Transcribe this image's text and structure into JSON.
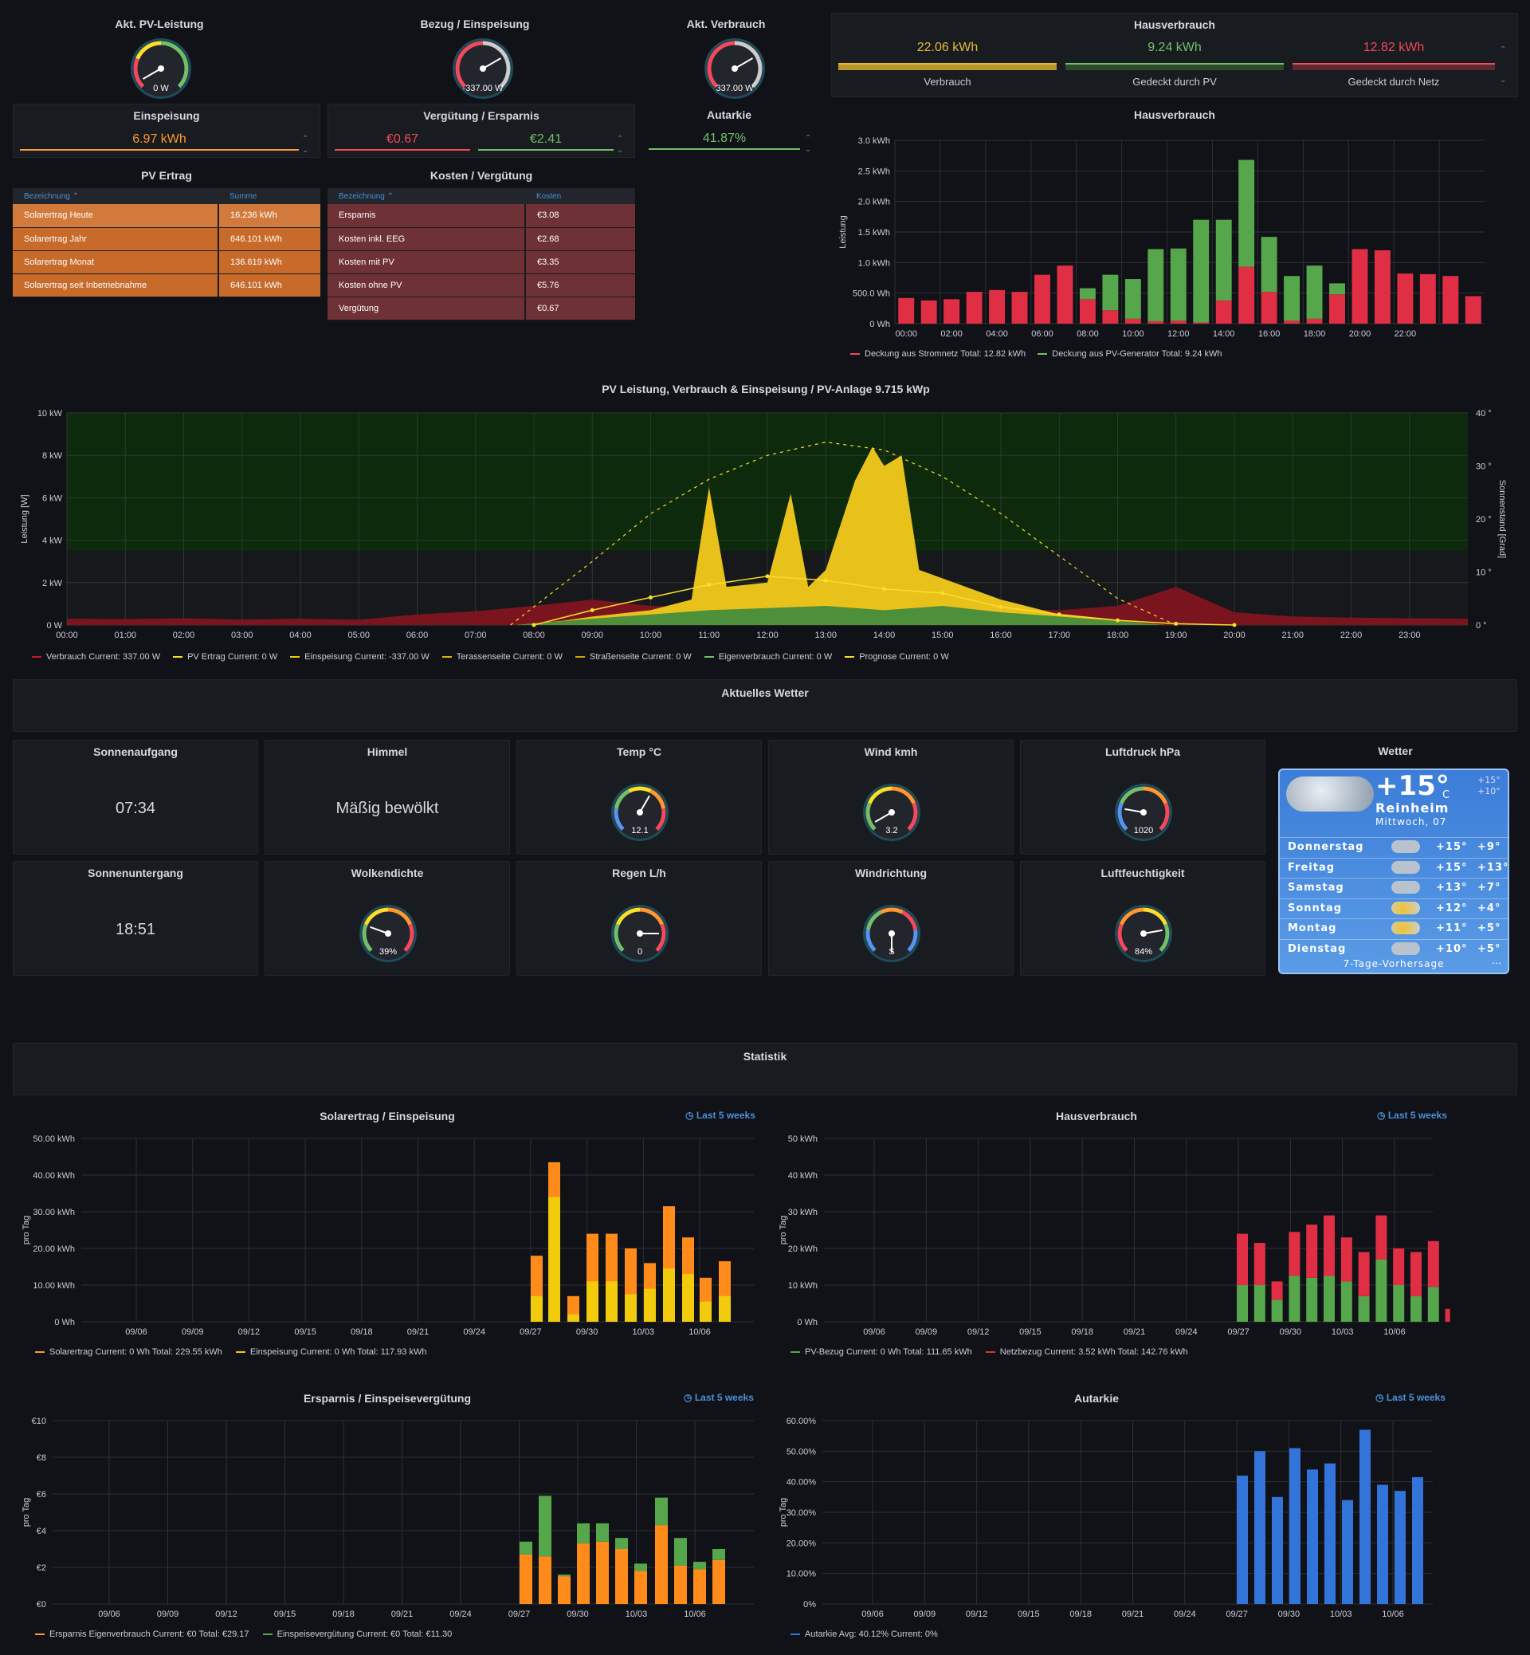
{
  "top_gauges": [
    {
      "title": "Akt. PV-Leistung",
      "value": "0 W"
    },
    {
      "title": "Bezug / Einspeisung",
      "value": "-337.00 W"
    },
    {
      "title": "Akt. Verbrauch",
      "value": "337.00 W"
    }
  ],
  "hausverbrauch_stat": {
    "title": "Hausverbrauch",
    "items": [
      {
        "value": "22.06 kWh",
        "label": "Verbrauch",
        "color": "#e6b83a"
      },
      {
        "value": "9.24 kWh",
        "label": "Gedeckt durch PV",
        "color": "#73bf69"
      },
      {
        "value": "12.82 kWh",
        "label": "Gedeckt durch Netz",
        "color": "#f2495c"
      }
    ]
  },
  "einspeisung": {
    "title": "Einspeisung",
    "value": "6.97 kWh",
    "color": "#ff9830"
  },
  "verguetung": {
    "title": "Vergütung / Ersparnis",
    "v1": "€0.67",
    "v2": "€2.41"
  },
  "autarkie_stat": {
    "title": "Autarkie",
    "value": "41.87%"
  },
  "pv_ertrag": {
    "title": "PV Ertrag",
    "col1": "Bezeichnung",
    "col2": "Summe",
    "rows": [
      [
        "Solarertrag Heute",
        "16.236 kWh"
      ],
      [
        "Solarertrag Jahr",
        "646.101 kWh"
      ],
      [
        "Solarertrag Monat",
        "136.619 kWh"
      ],
      [
        "Solarertrag seit Inbetriebnahme",
        "646.101 kWh"
      ]
    ]
  },
  "kosten": {
    "title": "Kosten / Vergütung",
    "col1": "Bezeichnung",
    "col2": "Kosten",
    "rows": [
      [
        "Ersparnis",
        "€3.08"
      ],
      [
        "Kosten inkl. EEG",
        "€2.68"
      ],
      [
        "Kosten mit PV",
        "€3.35"
      ],
      [
        "Kosten ohne PV",
        "€5.76"
      ],
      [
        "Vergütung",
        "€0.67"
      ]
    ]
  },
  "haus_chart": {
    "title": "Hausverbrauch",
    "ylabel": "Leistung",
    "legend": [
      {
        "text": "Deckung aus Stromnetz  Total: 12.82 kWh",
        "color": "#f2495c"
      },
      {
        "text": "Deckung aus PV-Generator  Total: 9.24 kWh",
        "color": "#73bf69"
      }
    ]
  },
  "pv_chart": {
    "title": "PV Leistung, Verbrauch & Einspeisung / PV-Anlage 9.715 kWp",
    "ylabel": "Leistung [W]",
    "y2label": "Sonnenstand [Grad]",
    "legend": [
      {
        "text": "Verbrauch  Current: 337.00 W",
        "color": "#c4162a"
      },
      {
        "text": "PV Ertrag  Current: 0 W",
        "color": "#fade2a"
      },
      {
        "text": "Einspeisung  Current: -337.00 W",
        "color": "#f2cc0c"
      },
      {
        "text": "Terassenseite  Current: 0 W",
        "color": "#e0b400"
      },
      {
        "text": "Straßenseite  Current: 0 W",
        "color": "#cca300"
      },
      {
        "text": "Eigenverbrauch  Current: 0 W",
        "color": "#73bf69"
      },
      {
        "text": "Prognose  Current: 0 W",
        "color": "#fade2a"
      }
    ]
  },
  "wetter_header": "Aktuelles Wetter",
  "weather": {
    "sunrise": {
      "title": "Sonnenaufgang",
      "value": "07:34"
    },
    "sky": {
      "title": "Himmel",
      "value": "Mäßig bewölkt"
    },
    "temp": {
      "title": "Temp °C",
      "value": "12.1"
    },
    "wind": {
      "title": "Wind kmh",
      "value": "3.2"
    },
    "pressure": {
      "title": "Luftdruck hPa",
      "value": "1020"
    },
    "sunset": {
      "title": "Sonnenuntergang",
      "value": "18:51"
    },
    "clouds": {
      "title": "Wolkendichte",
      "value": "39%"
    },
    "rain": {
      "title": "Regen L/h",
      "value": "0"
    },
    "winddir": {
      "title": "Windrichtung",
      "value": "S"
    },
    "humidity": {
      "title": "Luftfeuchtigkeit",
      "value": "84%"
    }
  },
  "wetter_widget": {
    "title": "Wetter",
    "temp": "+15°",
    "unit": "C",
    "hi": "+15°",
    "lo": "+10°",
    "city": "Reinheim",
    "date": "Mittwoch, 07",
    "days": [
      [
        "Donnerstag",
        "+15°",
        "+9°"
      ],
      [
        "Freitag",
        "+15°",
        "+13°"
      ],
      [
        "Samstag",
        "+13°",
        "+7°"
      ],
      [
        "Sonntag",
        "+12°",
        "+4°"
      ],
      [
        "Montag",
        "+11°",
        "+5°"
      ],
      [
        "Dienstag",
        "+10°",
        "+5°"
      ]
    ],
    "footer": "7-Tage-Vorhersage"
  },
  "statistik_header": "Statistik",
  "stats": {
    "range_label": "Last 5 weeks",
    "dates": [
      "09/06",
      "09/09",
      "09/12",
      "09/15",
      "09/18",
      "09/21",
      "09/24",
      "09/27",
      "09/30",
      "10/03",
      "10/06"
    ],
    "ylabel": "pro Tag",
    "solar": {
      "title": "Solarertrag / Einspeisung",
      "yticks": [
        "0 Wh",
        "10.00 kWh",
        "20.00 kWh",
        "30.00 kWh",
        "40.00 kWh",
        "50.00 kWh"
      ],
      "legend": [
        {
          "text": "Solarertrag  Current: 0 Wh  Total: 229.55 kWh",
          "color": "#ff9830"
        },
        {
          "text": "Einspeisung  Current: 0 Wh  Total: 117.93 kWh",
          "color": "#f2cc0c"
        }
      ]
    },
    "haus": {
      "title": "Hausverbrauch",
      "yticks": [
        "0 Wh",
        "10 kWh",
        "20 kWh",
        "30 kWh",
        "40 kWh",
        "50 kWh"
      ],
      "legend": [
        {
          "text": "PV-Bezug  Current: 0 Wh  Total: 111.65 kWh",
          "color": "#56a64b"
        },
        {
          "text": "Netzbezug  Current: 3.52 kWh  Total: 142.76 kWh",
          "color": "#e02f44"
        }
      ]
    },
    "ersparnis": {
      "title": "Ersparnis / Einspeisevergütung",
      "yticks": [
        "€0",
        "€2",
        "€4",
        "€6",
        "€8",
        "€10"
      ],
      "legend": [
        {
          "text": "Ersparnis Eigenverbrauch  Current: €0  Total: €29.17",
          "color": "#ff9830"
        },
        {
          "text": "Einspeisevergütung  Current: €0  Total: €11.30",
          "color": "#56a64b"
        }
      ]
    },
    "autarkie": {
      "title": "Autarkie",
      "yticks": [
        "0%",
        "10.00%",
        "20.00%",
        "30.00%",
        "40.00%",
        "50.00%",
        "60.00%"
      ],
      "legend": [
        {
          "text": "Autarkie  Avg: 40.12%  Current: 0%",
          "color": "#3274d9"
        }
      ]
    }
  },
  "chart_data": [
    {
      "type": "bar",
      "title": "Hausverbrauch",
      "ylabel": "Leistung",
      "ylim": [
        0,
        3000
      ],
      "yticks": [
        "0 Wh",
        "500.0 Wh",
        "1.0 kWh",
        "1.5 kWh",
        "2.0 kWh",
        "2.5 kWh",
        "3.0 kWh"
      ],
      "xticks": [
        "00:00",
        "02:00",
        "04:00",
        "06:00",
        "08:00",
        "10:00",
        "12:00",
        "14:00",
        "16:00",
        "18:00",
        "20:00",
        "22:00"
      ],
      "series": [
        {
          "name": "Deckung aus Stromnetz",
          "values": [
            420,
            380,
            400,
            520,
            550,
            520,
            800,
            950,
            400,
            220,
            80,
            40,
            50,
            20,
            380,
            930,
            520,
            50,
            80,
            480,
            1220,
            1200,
            820,
            810,
            780,
            450
          ]
        },
        {
          "name": "Deckung aus PV-Generator",
          "values": [
            0,
            0,
            0,
            0,
            0,
            0,
            0,
            0,
            180,
            580,
            650,
            1180,
            1180,
            1680,
            1320,
            1750,
            900,
            730,
            870,
            180,
            0,
            0,
            0,
            0,
            0,
            0
          ]
        }
      ]
    },
    {
      "type": "area",
      "title": "PV Leistung, Verbrauch & Einspeisung / PV-Anlage 9.715 kWp",
      "ylim": [
        0,
        10000
      ],
      "y2lim": [
        0,
        40
      ],
      "yticks": [
        "0 W",
        "2 kW",
        "4 kW",
        "6 kW",
        "8 kW",
        "10 kW"
      ],
      "y2ticks": [
        "0 °",
        "10 °",
        "20 °",
        "30 °",
        "40 °"
      ],
      "xticks": [
        "00:00",
        "01:00",
        "02:00",
        "03:00",
        "04:00",
        "05:00",
        "06:00",
        "07:00",
        "08:00",
        "09:00",
        "10:00",
        "11:00",
        "12:00",
        "13:00",
        "14:00",
        "15:00",
        "16:00",
        "17:00",
        "18:00",
        "19:00",
        "20:00",
        "21:00",
        "22:00",
        "23:00"
      ],
      "series": [
        {
          "name": "Verbrauch",
          "points": [
            [
              0,
              300
            ],
            [
              1,
              280
            ],
            [
              2,
              320
            ],
            [
              3,
              260
            ],
            [
              4,
              300
            ],
            [
              5,
              250
            ],
            [
              6,
              500
            ],
            [
              7,
              650
            ],
            [
              8,
              900
            ],
            [
              9,
              1200
            ],
            [
              10,
              900
            ],
            [
              11,
              800
            ],
            [
              12,
              700
            ],
            [
              13,
              600
            ],
            [
              14,
              700
            ],
            [
              15,
              800
            ],
            [
              16,
              750
            ],
            [
              17,
              700
            ],
            [
              18,
              900
            ],
            [
              19,
              1800
            ],
            [
              20,
              600
            ],
            [
              21,
              400
            ],
            [
              22,
              350
            ],
            [
              23,
              320
            ],
            [
              24,
              300
            ]
          ]
        },
        {
          "name": "PV Ertrag",
          "points": [
            [
              7.7,
              0
            ],
            [
              8.5,
              200
            ],
            [
              9,
              400
            ],
            [
              10,
              700
            ],
            [
              10.7,
              1200
            ],
            [
              11,
              6500
            ],
            [
              11.3,
              1800
            ],
            [
              12,
              2000
            ],
            [
              12.4,
              6200
            ],
            [
              12.7,
              1800
            ],
            [
              13,
              2600
            ],
            [
              13.5,
              6800
            ],
            [
              13.8,
              8400
            ],
            [
              14,
              7500
            ],
            [
              14.3,
              8000
            ],
            [
              14.6,
              2600
            ],
            [
              15,
              2200
            ],
            [
              16,
              1200
            ],
            [
              17,
              500
            ],
            [
              18,
              200
            ],
            [
              18.8,
              0
            ]
          ]
        },
        {
          "name": "Eigenverbrauch",
          "points": [
            [
              7.7,
              0
            ],
            [
              9,
              300
            ],
            [
              10,
              500
            ],
            [
              11,
              700
            ],
            [
              12,
              800
            ],
            [
              13,
              900
            ],
            [
              14,
              700
            ],
            [
              15,
              900
            ],
            [
              16,
              600
            ],
            [
              17,
              400
            ],
            [
              18,
              200
            ],
            [
              18.8,
              0
            ]
          ]
        },
        {
          "name": "Prognose",
          "points": [
            [
              8,
              0
            ],
            [
              9,
              700
            ],
            [
              10,
              1300
            ],
            [
              11,
              1900
            ],
            [
              12,
              2300
            ],
            [
              13,
              2100
            ],
            [
              14,
              1700
            ],
            [
              15,
              1500
            ],
            [
              16,
              850
            ],
            [
              17,
              500
            ],
            [
              18,
              220
            ],
            [
              19,
              60
            ],
            [
              20,
              0
            ]
          ]
        },
        {
          "name": "Sonnenstand",
          "points": [
            [
              7.6,
              0
            ],
            [
              9,
              12
            ],
            [
              10,
              21
            ],
            [
              11,
              27.5
            ],
            [
              12,
              32
            ],
            [
              13,
              34.5
            ],
            [
              14,
              33
            ],
            [
              15,
              28
            ],
            [
              16,
              21
            ],
            [
              17,
              13
            ],
            [
              18,
              5
            ],
            [
              19,
              0
            ]
          ]
        }
      ]
    },
    {
      "type": "bar",
      "title": "Solarertrag / Einspeisung",
      "ylim": [
        0,
        50
      ],
      "unit": "kWh",
      "series": [
        {
          "name": "Solarertrag",
          "values": [
            18,
            43.5,
            7,
            24,
            24,
            20,
            16,
            31.5,
            23,
            12,
            16.5
          ]
        },
        {
          "name": "Einspeisung",
          "values": [
            7,
            34,
            2,
            11,
            11,
            7.5,
            9,
            14.5,
            13,
            5.5,
            7
          ]
        }
      ]
    },
    {
      "type": "bar",
      "title": "Hausverbrauch",
      "ylim": [
        0,
        50
      ],
      "unit": "kWh",
      "series": [
        {
          "name": "PV-Bezug",
          "values": [
            10,
            10,
            6,
            12.5,
            12,
            12.5,
            11,
            7,
            17,
            10,
            7,
            9.5,
            0
          ]
        },
        {
          "name": "Netzbezug",
          "values": [
            14,
            11.5,
            5,
            12,
            14.5,
            16.5,
            12,
            12,
            12,
            10,
            12,
            12.5,
            3.5
          ]
        }
      ]
    },
    {
      "type": "bar",
      "title": "Ersparnis / Einspeisevergütung",
      "ylim": [
        0,
        10
      ],
      "unit": "€",
      "series": [
        {
          "name": "Ersparnis Eigenverbrauch",
          "values": [
            2.7,
            2.6,
            1.5,
            3.3,
            3.4,
            3.0,
            1.8,
            4.3,
            2.1,
            1.9,
            2.4
          ]
        },
        {
          "name": "Einspeisevergütung",
          "values": [
            0.7,
            3.3,
            0.1,
            1.1,
            1.0,
            0.6,
            0.4,
            1.5,
            1.5,
            0.4,
            0.6
          ]
        }
      ]
    },
    {
      "type": "bar",
      "title": "Autarkie",
      "ylim": [
        0,
        60
      ],
      "unit": "%",
      "series": [
        {
          "name": "Autarkie",
          "values": [
            42,
            50,
            35,
            51,
            44,
            46,
            34,
            57,
            39,
            37,
            41.5
          ]
        }
      ]
    }
  ]
}
